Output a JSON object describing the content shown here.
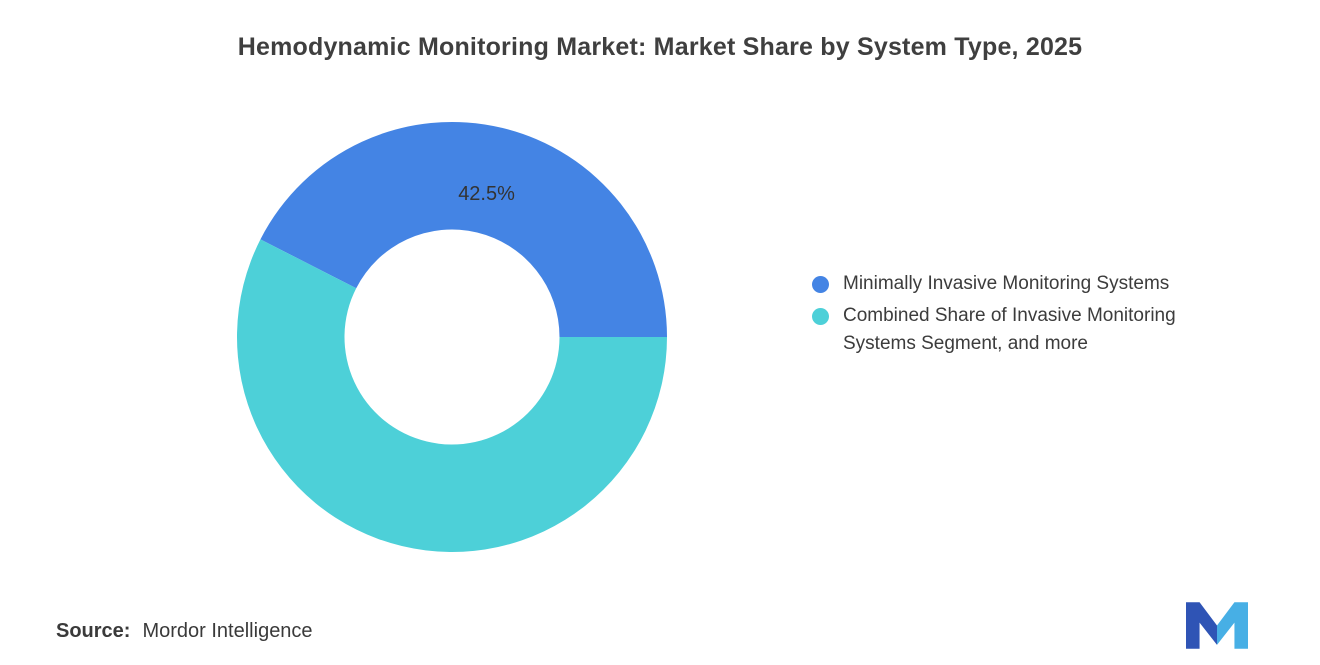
{
  "title": "Hemodynamic Monitoring Market: Market Share by System Type, 2025",
  "source": {
    "label": "Source:",
    "value": "Mordor Intelligence"
  },
  "colors": {
    "slice_blue": "#4484E4",
    "slice_teal": "#4DD0D8",
    "logo_dark": "#2F54B5",
    "logo_light": "#47AFE5"
  },
  "legend": {
    "items": [
      {
        "label": "Minimally Invasive Monitoring Systems",
        "color": "#4484E4"
      },
      {
        "label": "Combined Share of Invasive Monitoring Systems Segment, and more",
        "color": "#4DD0D8"
      }
    ]
  },
  "chart_data": {
    "type": "pie",
    "subtype": "donut",
    "title": "Hemodynamic Monitoring Market: Market Share by System Type, 2025",
    "slices": [
      {
        "label": "Minimally Invasive Monitoring Systems",
        "value": 42.5,
        "color": "#4484E4",
        "data_label": "42.5%"
      },
      {
        "label": "Combined Share of Invasive Monitoring Systems Segment, and more",
        "value": 57.5,
        "color": "#4DD0D8",
        "data_label": ""
      }
    ],
    "start_angle_deg": -63,
    "inner_radius_ratio": 0.5,
    "legend_position": "right",
    "data_label_color": "#333333"
  }
}
